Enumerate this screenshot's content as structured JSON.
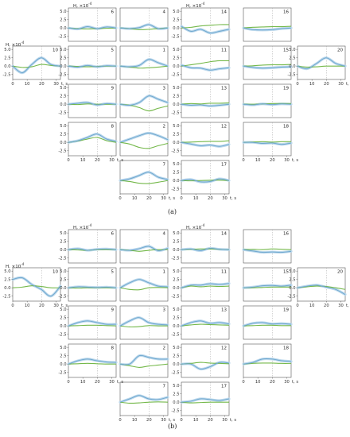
{
  "figure": {
    "captions": [
      "(a)",
      "(b)"
    ],
    "y_axis_label": "H, ×10",
    "y_axis_exponent": "-4",
    "x_axis_label": "t, s",
    "x_ticks": [
      0,
      10,
      20,
      30
    ],
    "y_ticks": [
      5.0,
      2.5,
      0.0,
      -2.5
    ],
    "y_tick_labels": [
      "5.0",
      "2.5",
      "0.0",
      "-2.5"
    ],
    "ylim": [
      -4,
      6
    ],
    "xlim": [
      0,
      33
    ],
    "dashed_vline_x": 20,
    "colors": {
      "blue": "#6fa8cf",
      "blue_band": "#bcd8ec",
      "green": "#74b84a",
      "axis": "#555555",
      "dash": "#aaaaaa"
    }
  },
  "chart_data": [
    {
      "type": "line",
      "panel_set": "a",
      "title": "",
      "xlabel": "t, s",
      "ylabel": "H, ×10^-4",
      "ylim": [
        -4,
        6
      ],
      "series_labels": [
        "blue",
        "green"
      ],
      "panels": [
        {
          "label": "6",
          "blue": [
            0,
            -0.3,
            0.4,
            -0.2,
            0.3,
            0
          ],
          "green": [
            0,
            -0.2,
            -0.3,
            -0.2,
            -0.1,
            0
          ]
        },
        {
          "label": "4",
          "blue": [
            0,
            -0.2,
            0.1,
            1.0,
            -0.2,
            0
          ],
          "green": [
            0,
            -0.2,
            -0.5,
            -0.4,
            -0.2,
            0
          ]
        },
        {
          "label": "14",
          "blue": [
            0.5,
            -1.0,
            -0.4,
            -1.5,
            -1.0,
            -0.4
          ],
          "green": [
            0,
            0.2,
            0.6,
            0.8,
            1.0,
            1.0
          ]
        },
        {
          "label": "16",
          "blue": [
            0,
            -0.5,
            -0.6,
            -0.5,
            -0.2,
            0
          ],
          "green": [
            0,
            0.2,
            0.3,
            0.4,
            0.4,
            0.5
          ]
        },
        {
          "label": "10",
          "blue": [
            0,
            -2.0,
            0.5,
            2.5,
            0.5,
            0
          ],
          "green": [
            0,
            -0.4,
            -0.2,
            0.5,
            0.2,
            0
          ]
        },
        {
          "label": "5",
          "blue": [
            0,
            -0.3,
            0.2,
            -0.2,
            0.1,
            0
          ],
          "green": [
            0,
            -0.1,
            -0.2,
            -0.1,
            0,
            0
          ]
        },
        {
          "label": "1",
          "blue": [
            0,
            -0.2,
            0.2,
            2.0,
            1.0,
            0
          ],
          "green": [
            0,
            -0.3,
            -0.6,
            -0.5,
            -0.3,
            0
          ]
        },
        {
          "label": "11",
          "blue": [
            0.3,
            -0.5,
            -0.6,
            -1.2,
            -0.8,
            -0.5
          ],
          "green": [
            0,
            0.4,
            0.8,
            1.3,
            1.6,
            1.6
          ]
        },
        {
          "label": "15",
          "blue": [
            0,
            -0.4,
            -0.6,
            -0.5,
            -0.3,
            -0.2
          ],
          "green": [
            0,
            0.1,
            0.3,
            0.4,
            0.4,
            0.5
          ]
        },
        {
          "label": "20",
          "blue": [
            0,
            -0.8,
            0.8,
            2.5,
            0.8,
            0
          ],
          "green": [
            0,
            -0.3,
            -0.2,
            0,
            0,
            0
          ]
        },
        {
          "label": "9",
          "blue": [
            0,
            0.3,
            0.5,
            -0.2,
            0.2,
            0
          ],
          "green": [
            0,
            -0.1,
            0.1,
            0,
            0,
            0
          ]
        },
        {
          "label": "3",
          "blue": [
            0,
            -0.3,
            0.5,
            2.5,
            1.5,
            0.5
          ],
          "green": [
            0,
            -0.3,
            -1.0,
            -2.0,
            -1.2,
            -0.5
          ]
        },
        {
          "label": "13",
          "blue": [
            0,
            -0.3,
            -0.2,
            -0.5,
            -0.3,
            0
          ],
          "green": [
            0,
            0.2,
            0.1,
            0.3,
            0.3,
            0.4
          ]
        },
        {
          "label": "19",
          "blue": [
            0,
            -0.2,
            0.1,
            -0.1,
            0.1,
            0
          ],
          "green": [
            0,
            0,
            0.1,
            0.2,
            0.2,
            0.2
          ]
        },
        {
          "label": "8",
          "blue": [
            0,
            0.5,
            1.5,
            2.5,
            1.0,
            0.3
          ],
          "green": [
            0,
            0.4,
            1.0,
            1.5,
            0.5,
            0
          ]
        },
        {
          "label": "2",
          "blue": [
            0,
            1.0,
            2.0,
            2.8,
            2.0,
            0.8
          ],
          "green": [
            0,
            -0.5,
            -1.5,
            -1.8,
            -1.0,
            -0.3
          ]
        },
        {
          "label": "12",
          "blue": [
            0,
            -0.5,
            -1.0,
            -0.8,
            -1.2,
            -0.6
          ],
          "green": [
            0,
            0.1,
            0.2,
            0.3,
            0.3,
            0.5
          ]
        },
        {
          "label": "18",
          "blue": [
            0,
            0,
            -0.3,
            -0.2,
            -0.6,
            -0.2
          ],
          "green": [
            0,
            0.1,
            0.2,
            0.1,
            0.2,
            0.2
          ]
        },
        {
          "label": "7",
          "blue": [
            0,
            0.5,
            1.5,
            2.5,
            1.0,
            0.3
          ],
          "green": [
            0,
            -0.3,
            -0.8,
            -0.9,
            -0.5,
            0
          ]
        },
        {
          "label": "17",
          "blue": [
            0,
            0.3,
            -0.4,
            -0.3,
            0.5,
            0
          ],
          "green": [
            0,
            -0.1,
            0,
            0.1,
            0.1,
            0
          ]
        }
      ]
    },
    {
      "type": "line",
      "panel_set": "b",
      "title": "",
      "xlabel": "t, s",
      "ylabel": "H, ×10^-4",
      "ylim": [
        -4,
        6
      ],
      "series_labels": [
        "blue",
        "green"
      ],
      "panels": [
        {
          "label": "6",
          "blue": [
            0,
            0.3,
            -0.2,
            0.1,
            0.2,
            0
          ],
          "green": [
            0,
            -0.1,
            -0.2,
            0,
            0,
            0
          ]
        },
        {
          "label": "4",
          "blue": [
            0,
            -0.2,
            0.3,
            1.0,
            -0.3,
            0.4
          ],
          "green": [
            0,
            -0.2,
            -0.5,
            -0.2,
            0,
            0
          ]
        },
        {
          "label": "14",
          "blue": [
            0,
            0.2,
            -0.3,
            0.4,
            0.1,
            0
          ],
          "green": [
            0,
            0.1,
            0.2,
            0.2,
            0.1,
            0
          ]
        },
        {
          "label": "16",
          "blue": [
            0,
            -0.4,
            -0.8,
            -0.7,
            -0.8,
            -0.5
          ],
          "green": [
            0,
            0.1,
            0,
            0.2,
            0.1,
            0
          ]
        },
        {
          "label": "10",
          "blue": [
            2.5,
            3.0,
            1.0,
            -0.5,
            -2.5,
            0.5
          ],
          "green": [
            0,
            0.2,
            0.6,
            0.4,
            0,
            0
          ]
        },
        {
          "label": "5",
          "blue": [
            0,
            0.3,
            0.2,
            0.1,
            0.2,
            0
          ],
          "green": [
            0,
            -0.1,
            0,
            0,
            0,
            0
          ]
        },
        {
          "label": "1",
          "blue": [
            0,
            1.5,
            2.5,
            1.5,
            0.5,
            0.3
          ],
          "green": [
            0,
            -0.5,
            -0.6,
            0,
            0.1,
            0
          ]
        },
        {
          "label": "11",
          "blue": [
            0,
            0.8,
            0.8,
            1.2,
            1.0,
            1.3
          ],
          "green": [
            0,
            0.5,
            0.3,
            0.5,
            0.4,
            0.5
          ]
        },
        {
          "label": "15",
          "blue": [
            0,
            0.2,
            0.6,
            0.7,
            0.5,
            0.8
          ],
          "green": [
            0,
            0,
            0.1,
            0.2,
            0.2,
            0.2
          ]
        },
        {
          "label": "20",
          "blue": [
            0,
            0.5,
            0.8,
            0.2,
            -0.5,
            -2.0
          ],
          "green": [
            0,
            0.3,
            0.5,
            0.4,
            0,
            -0.5
          ]
        },
        {
          "label": "9",
          "blue": [
            0,
            1.0,
            1.5,
            1.0,
            0.5,
            0.5
          ],
          "green": [
            0,
            0.1,
            0.2,
            0.2,
            0.1,
            0
          ]
        },
        {
          "label": "3",
          "blue": [
            0,
            1.5,
            2.5,
            1.0,
            0.5,
            0.3
          ],
          "green": [
            0,
            -0.3,
            -0.2,
            0.1,
            0,
            0
          ]
        },
        {
          "label": "13",
          "blue": [
            0,
            1.0,
            1.5,
            0.8,
            1.0,
            0.6
          ],
          "green": [
            0,
            0.3,
            0.5,
            0.4,
            0.3,
            0.2
          ]
        },
        {
          "label": "19",
          "blue": [
            0,
            0.8,
            1.0,
            0.6,
            0.7,
            0.5
          ],
          "green": [
            0,
            0.1,
            0.2,
            0.2,
            0.1,
            0.1
          ]
        },
        {
          "label": "8",
          "blue": [
            0,
            1.0,
            1.5,
            1.0,
            0.6,
            0.5
          ],
          "green": [
            0,
            0.1,
            0.2,
            0.1,
            0,
            0
          ]
        },
        {
          "label": "2",
          "blue": [
            0,
            0,
            2.5,
            2.0,
            1.5,
            1.5
          ],
          "green": [
            0,
            -0.5,
            -1.0,
            -0.6,
            -0.3,
            0
          ]
        },
        {
          "label": "12",
          "blue": [
            0,
            0,
            -1.5,
            -0.8,
            0.5,
            0.3
          ],
          "green": [
            0,
            0.2,
            0.5,
            0.3,
            0.2,
            0.1
          ]
        },
        {
          "label": "18",
          "blue": [
            0,
            0.5,
            1.5,
            1.5,
            1.0,
            0.8
          ],
          "green": [
            0,
            0.2,
            0.3,
            0.3,
            0.2,
            0.2
          ]
        },
        {
          "label": "7",
          "blue": [
            0,
            1.0,
            2.0,
            1.0,
            0.8,
            1.5
          ],
          "green": [
            0,
            -0.3,
            -0.2,
            0,
            0.1,
            0
          ]
        },
        {
          "label": "17",
          "blue": [
            0,
            0.3,
            1.0,
            0.8,
            0.5,
            1.0
          ],
          "green": [
            0,
            -0.2,
            -0.1,
            0,
            0,
            0
          ]
        }
      ]
    }
  ]
}
